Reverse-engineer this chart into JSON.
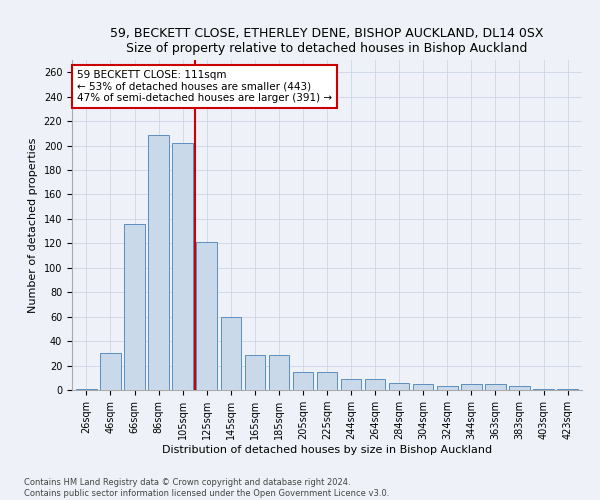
{
  "title1": "59, BECKETT CLOSE, ETHERLEY DENE, BISHOP AUCKLAND, DL14 0SX",
  "title2": "Size of property relative to detached houses in Bishop Auckland",
  "xlabel": "Distribution of detached houses by size in Bishop Auckland",
  "ylabel": "Number of detached properties",
  "categories": [
    "26sqm",
    "46sqm",
    "66sqm",
    "86sqm",
    "105sqm",
    "125sqm",
    "145sqm",
    "165sqm",
    "185sqm",
    "205sqm",
    "225sqm",
    "244sqm",
    "264sqm",
    "284sqm",
    "304sqm",
    "324sqm",
    "344sqm",
    "363sqm",
    "383sqm",
    "403sqm",
    "423sqm"
  ],
  "values": [
    1,
    30,
    136,
    209,
    202,
    121,
    60,
    29,
    29,
    15,
    15,
    9,
    9,
    6,
    5,
    3,
    5,
    5,
    3,
    1,
    1
  ],
  "bar_color": "#c9d9ea",
  "bar_edge_color": "#5a8fc0",
  "vline_x": 4.5,
  "vline_color": "#cc0000",
  "annotation_line1": "59 BECKETT CLOSE: 111sqm",
  "annotation_line2": "← 53% of detached houses are smaller (443)",
  "annotation_line3": "47% of semi-detached houses are larger (391) →",
  "annotation_box_color": "#ffffff",
  "annotation_box_edge": "#cc0000",
  "ylim": [
    0,
    270
  ],
  "yticks": [
    0,
    20,
    40,
    60,
    80,
    100,
    120,
    140,
    160,
    180,
    200,
    220,
    240,
    260
  ],
  "footer1": "Contains HM Land Registry data © Crown copyright and database right 2024.",
  "footer2": "Contains public sector information licensed under the Open Government Licence v3.0.",
  "background_color": "#eef2f8",
  "grid_color": "#c8d0e0",
  "title_fontsize": 9,
  "axis_label_fontsize": 8,
  "tick_fontsize": 7,
  "annotation_fontsize": 7.5,
  "footer_fontsize": 6
}
